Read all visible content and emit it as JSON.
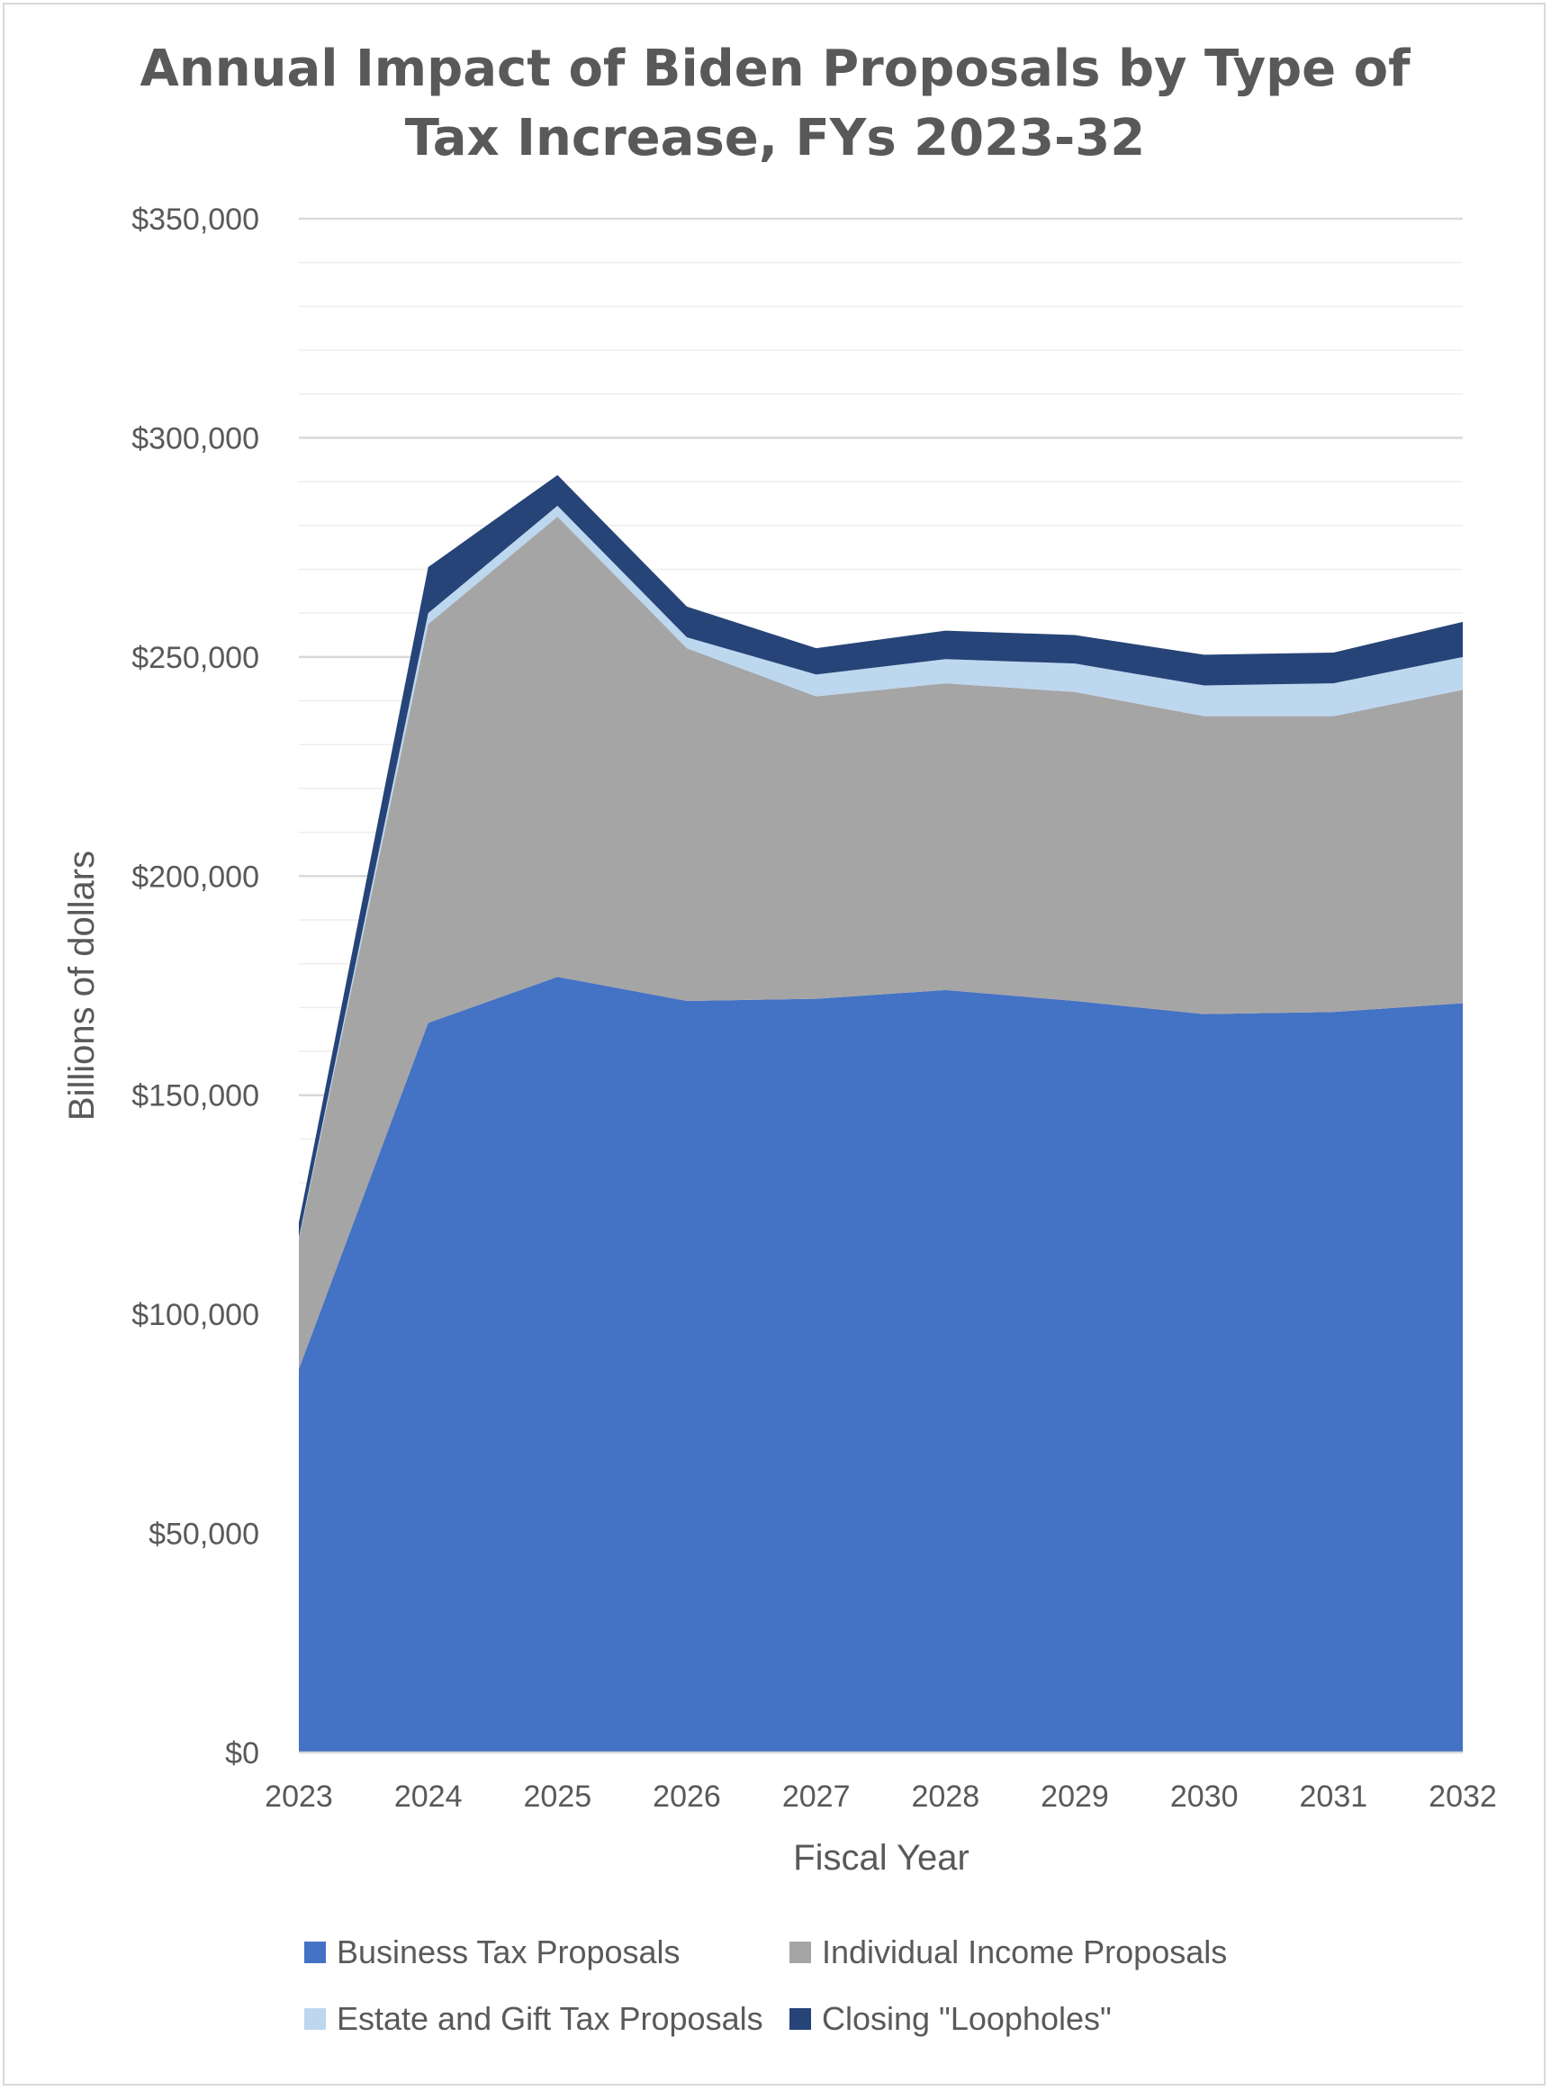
{
  "chart_data": {
    "type": "area",
    "stacked": true,
    "title_line1": "Annual Impact of Biden Proposals by Type of",
    "title_line2": "Tax Increase, FYs 2023-32",
    "xlabel": "Fiscal Year",
    "ylabel": "Billions of dollars",
    "x": [
      "2023",
      "2024",
      "2025",
      "2026",
      "2027",
      "2028",
      "2029",
      "2030",
      "2031",
      "2032"
    ],
    "ylim": [
      0,
      350000
    ],
    "y_ticks": [
      0,
      50000,
      100000,
      150000,
      200000,
      250000,
      300000,
      350000
    ],
    "y_tick_labels": [
      "$0",
      "$50,000",
      "$100,000",
      "$150,000",
      "$200,000",
      "$250,000",
      "$300,000",
      "$350,000"
    ],
    "grid": true,
    "legend_position": "bottom",
    "series": [
      {
        "name": "Business Tax Proposals",
        "color": "#4472c4",
        "values": [
          87500,
          166500,
          177000,
          171500,
          172000,
          174000,
          171500,
          168500,
          169000,
          171000
        ]
      },
      {
        "name": "Individual Income Proposals",
        "color": "#a5a5a5",
        "values": [
          29500,
          91000,
          105000,
          80500,
          69000,
          70000,
          70500,
          68000,
          67500,
          71500
        ]
      },
      {
        "name": "Estate and Gift Tax Proposals",
        "color": "#bdd7ee",
        "values": [
          500,
          2500,
          2500,
          2500,
          5000,
          5500,
          6500,
          7000,
          7500,
          7500
        ]
      },
      {
        "name": "Closing \"Loopholes\"",
        "color": "#264478",
        "values": [
          3500,
          10500,
          7000,
          7000,
          6000,
          6500,
          6500,
          7000,
          7000,
          8000
        ]
      }
    ]
  }
}
